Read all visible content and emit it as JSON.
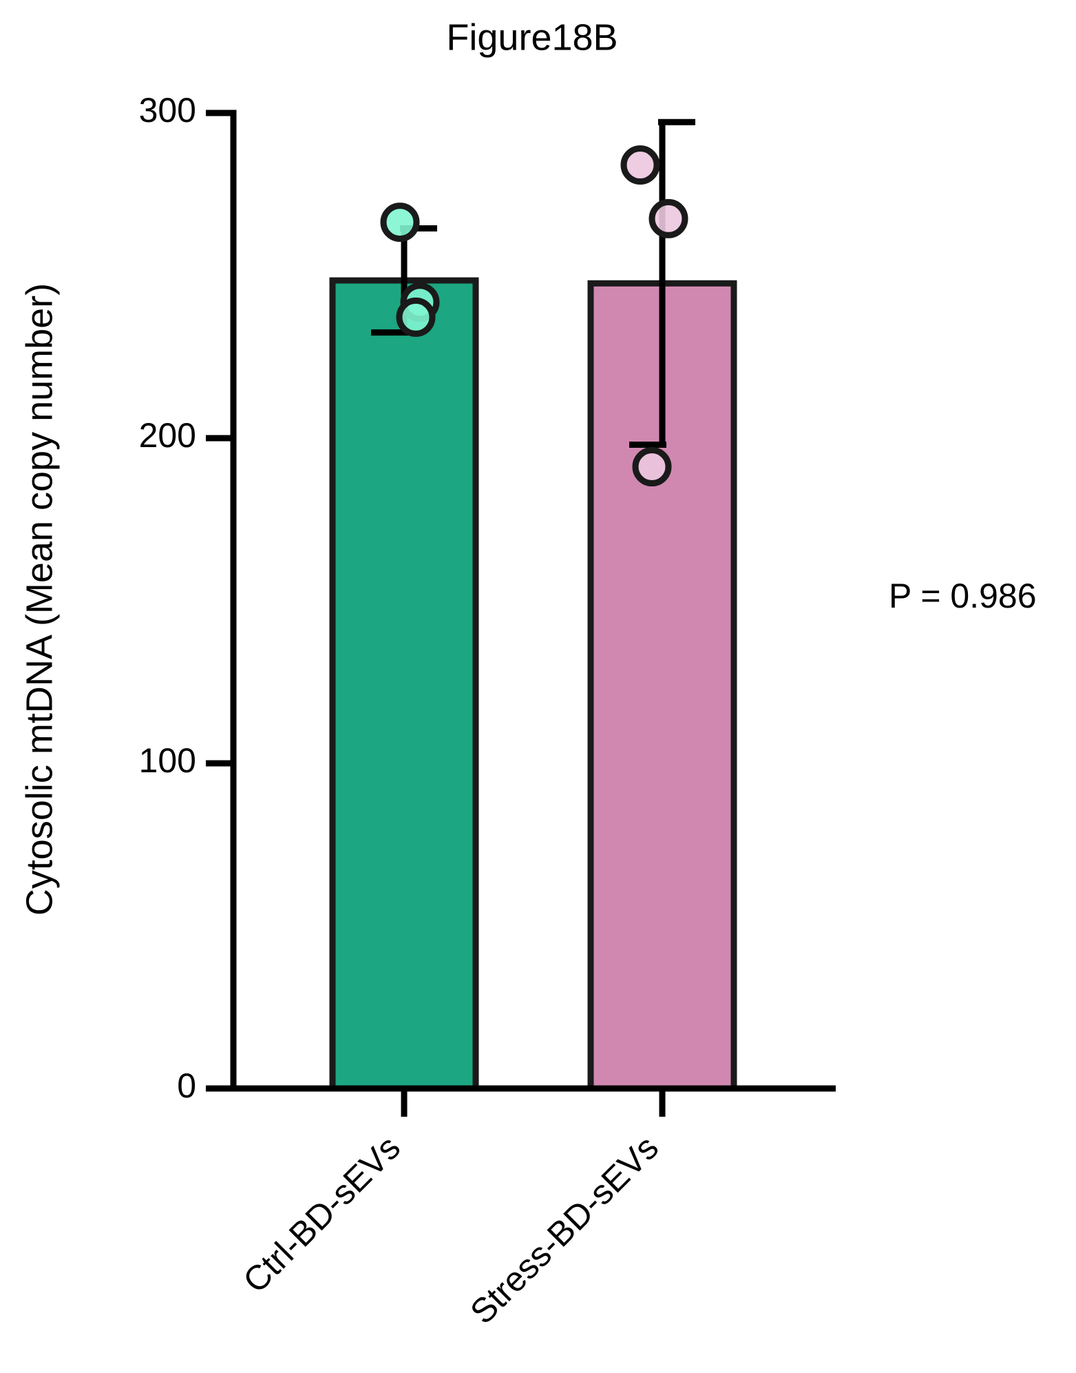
{
  "chart_data": {
    "type": "bar",
    "title": "Figure18B",
    "y_label": "Cytosolic mtDNA (Mean copy number)",
    "annotation": "P = 0.986",
    "categories": [
      "Ctrl-BD-sEVs",
      "Stress-BD-sEVs"
    ],
    "values": [
      248.5,
      247.6
    ],
    "errors": [
      16,
      49.6
    ],
    "colors": [
      "#1ca681",
      "#d088b0"
    ],
    "point_colors": [
      "#7ff5d0",
      "#ecc8e0"
    ],
    "points": [
      [
        266.4,
        241.8,
        237.2
      ],
      [
        284,
        267.5,
        191.2
      ]
    ],
    "ylim": [
      0,
      300
    ],
    "yticks": [
      0,
      100,
      200,
      300
    ]
  }
}
